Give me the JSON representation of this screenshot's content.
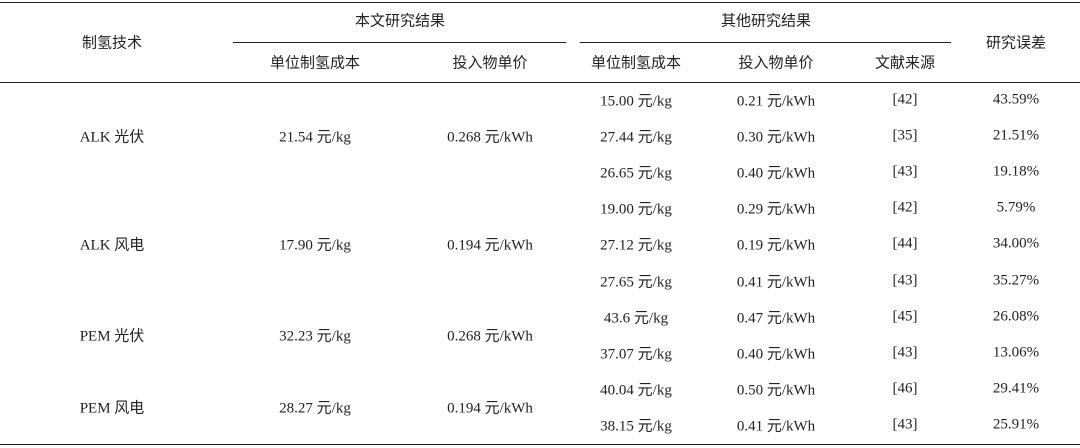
{
  "table": {
    "header": {
      "tech": "制氢技术",
      "ours": "本文研究结果",
      "others": "其他研究结果",
      "error": "研究误差",
      "ours_cols": [
        "单位制氢成本",
        "投入物单价"
      ],
      "others_cols": [
        "单位制氢成本",
        "投入物单价",
        "文献来源"
      ]
    },
    "groups": [
      {
        "tech": "ALK 光伏",
        "cost": "21.54 元/kg",
        "price": "0.268 元/kWh",
        "rows": [
          [
            "15.00 元/kg",
            "0.21 元/kWh",
            "[42]",
            "43.59%"
          ],
          [
            "27.44 元/kg",
            "0.30 元/kWh",
            "[35]",
            "21.51%"
          ],
          [
            "26.65 元/kg",
            "0.40 元/kWh",
            "[43]",
            "19.18%"
          ]
        ]
      },
      {
        "tech": "ALK 风电",
        "cost": "17.90 元/kg",
        "price": "0.194 元/kWh",
        "rows": [
          [
            "19.00 元/kg",
            "0.29 元/kWh",
            "[42]",
            "5.79%"
          ],
          [
            "27.12 元/kg",
            "0.19 元/kWh",
            "[44]",
            "34.00%"
          ],
          [
            "27.65 元/kg",
            "0.41 元/kWh",
            "[43]",
            "35.27%"
          ]
        ]
      },
      {
        "tech": "PEM 光伏",
        "cost": "32.23 元/kg",
        "price": "0.268 元/kWh",
        "rows": [
          [
            "43.6 元/kg",
            "0.47 元/kWh",
            "[45]",
            "26.08%"
          ],
          [
            "37.07 元/kg",
            "0.40 元/kWh",
            "[43]",
            "13.06%"
          ]
        ]
      },
      {
        "tech": "PEM 风电",
        "cost": "28.27 元/kg",
        "price": "0.194 元/kWh",
        "rows": [
          [
            "40.04 元/kg",
            "0.50 元/kWh",
            "[46]",
            "29.41%"
          ],
          [
            "38.15 元/kg",
            "0.41 元/kWh",
            "[43]",
            "25.91%"
          ]
        ]
      }
    ]
  }
}
